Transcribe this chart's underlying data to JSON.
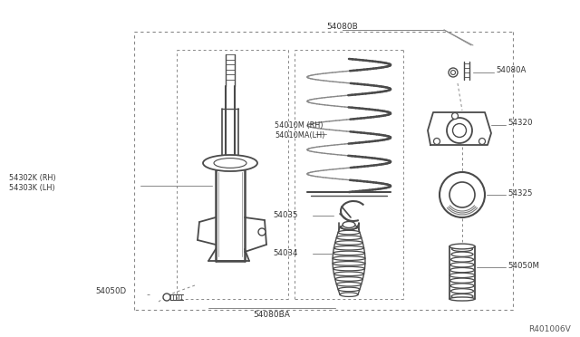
{
  "bg_color": "#ffffff",
  "line_color": "#4a4a4a",
  "dashed_color": "#888888",
  "fig_width": 6.4,
  "fig_height": 3.72,
  "dpi": 100,
  "watermark": "R401006V",
  "label_54080B": "54080B",
  "label_54080A": "54080A",
  "label_54320": "54320",
  "label_54325": "54325",
  "label_54050M": "54050M",
  "label_54010M": "54010M (RH)\n54010MA(LH)",
  "label_54035": "54035",
  "label_54034": "54034",
  "label_54302K": "54302K (RH)\n54303K (LH)",
  "label_54050D": "54050D",
  "label_54080BA": "54080BA"
}
